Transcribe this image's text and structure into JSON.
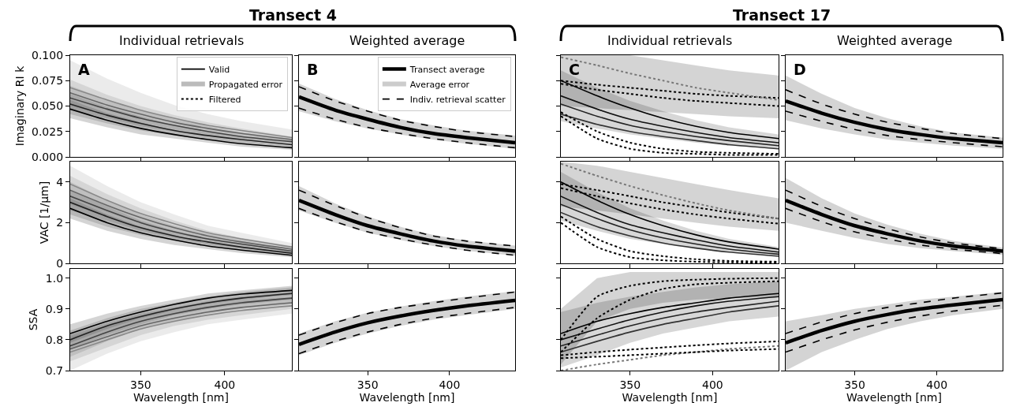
{
  "chart_data": [
    {
      "type": "line",
      "title": "Transect 4",
      "subtitle": "Individual retrievals",
      "annotations": [
        "A"
      ],
      "ylabel": "Imaginary RI k",
      "x": [
        308,
        330,
        350,
        370,
        390,
        410,
        440
      ],
      "xlim": [
        308,
        440
      ],
      "xticks": [
        350,
        400
      ],
      "ylim": [
        0,
        0.1
      ],
      "yticks": [
        {
          "value": 0,
          "label": "0.000"
        },
        {
          "value": 0.025,
          "label": "0.025"
        },
        {
          "value": 0.05,
          "label": "0.050"
        },
        {
          "value": 0.075,
          "label": "0.075"
        },
        {
          "value": 0.1,
          "label": "0.100"
        }
      ],
      "tick_labels": "y",
      "legend": "top right",
      "series": [
        {
          "name": "Valid",
          "color": "#000000",
          "line_style": "solid",
          "values": [
            0.047,
            0.036,
            0.028,
            0.022,
            0.017,
            0.013,
            0.009
          ],
          "lower": [
            0.038,
            0.029,
            0.022,
            0.018,
            0.014,
            0.01,
            0.007
          ],
          "upper": [
            0.056,
            0.043,
            0.034,
            0.026,
            0.02,
            0.016,
            0.011
          ]
        },
        {
          "color": "#222222",
          "line_style": "solid",
          "values": [
            0.052,
            0.041,
            0.033,
            0.026,
            0.021,
            0.017,
            0.012
          ],
          "lower": [
            0.042,
            0.033,
            0.026,
            0.021,
            0.017,
            0.014,
            0.01
          ],
          "upper": [
            0.062,
            0.049,
            0.04,
            0.031,
            0.025,
            0.02,
            0.014
          ]
        },
        {
          "color": "#444444",
          "line_style": "solid",
          "values": [
            0.058,
            0.047,
            0.038,
            0.031,
            0.025,
            0.02,
            0.015
          ],
          "lower": [
            0.046,
            0.038,
            0.03,
            0.025,
            0.02,
            0.016,
            0.012
          ],
          "upper": [
            0.07,
            0.056,
            0.046,
            0.037,
            0.03,
            0.024,
            0.018
          ]
        },
        {
          "color": "#666666",
          "line_style": "solid",
          "values": [
            0.063,
            0.051,
            0.042,
            0.034,
            0.028,
            0.023,
            0.017
          ],
          "lower": [
            0.05,
            0.041,
            0.034,
            0.027,
            0.022,
            0.018,
            0.014
          ],
          "upper": [
            0.076,
            0.061,
            0.05,
            0.041,
            0.034,
            0.028,
            0.02
          ]
        },
        {
          "color": "#888888",
          "line_style": "solid",
          "values": [
            0.068,
            0.056,
            0.046,
            0.038,
            0.031,
            0.026,
            0.019
          ],
          "lower": [
            0.055,
            0.046,
            0.038,
            0.031,
            0.025,
            0.021,
            0.015
          ],
          "upper": [
            0.095,
            0.077,
            0.063,
            0.051,
            0.042,
            0.035,
            0.027
          ]
        },
        {
          "name": "Propagated error",
          "type": "area",
          "color": "#bbbbbb",
          "values": [
            null,
            null,
            null,
            null,
            null,
            null,
            null
          ]
        },
        {
          "name": "Filtered",
          "color": "#000000",
          "line_style": "dotted",
          "values": [
            null,
            null,
            null,
            null,
            null,
            null,
            null
          ]
        }
      ]
    },
    {
      "type": "line",
      "subtitle": "Weighted average",
      "annotations": [
        "B"
      ],
      "x": [
        308,
        330,
        350,
        370,
        390,
        410,
        440
      ],
      "xlim": [
        308,
        440
      ],
      "xticks": [
        350,
        400
      ],
      "ylim": [
        0,
        0.1
      ],
      "yticks": [
        0,
        0.025,
        0.05,
        0.075,
        0.1
      ],
      "tick_labels": false,
      "legend": "top right",
      "series": [
        {
          "name": "Transect average",
          "color": "#000000",
          "line_style": "solid",
          "values": [
            0.059,
            0.046,
            0.037,
            0.029,
            0.023,
            0.019,
            0.014
          ],
          "lower": [
            0.045,
            0.035,
            0.028,
            0.022,
            0.017,
            0.013,
            0.008
          ],
          "upper": [
            0.072,
            0.057,
            0.046,
            0.037,
            0.031,
            0.026,
            0.021
          ]
        },
        {
          "name": "Average error",
          "type": "area",
          "color": "#cccccc",
          "values": [
            null,
            null,
            null,
            null,
            null,
            null,
            null
          ]
        },
        {
          "name": "Indiv. retrieval scatter",
          "color": "#000000",
          "line_style": "dashed",
          "values": [
            0.069,
            0.055,
            0.045,
            0.036,
            0.03,
            0.025,
            0.02
          ]
        },
        {
          "color": "#000000",
          "line_style": "dashed",
          "values": [
            0.048,
            0.037,
            0.029,
            0.023,
            0.018,
            0.014,
            0.009
          ]
        }
      ]
    },
    {
      "type": "line",
      "title": "Transect 17",
      "subtitle": "Individual retrievals",
      "annotations": [
        "C"
      ],
      "x": [
        308,
        330,
        350,
        370,
        390,
        410,
        440
      ],
      "xlim": [
        308,
        440
      ],
      "xticks": [
        350,
        400
      ],
      "ylim": [
        0,
        0.1
      ],
      "yticks": [
        0,
        0.025,
        0.05,
        0.075,
        0.1
      ],
      "tick_labels": false,
      "series": [
        {
          "color": "#000000",
          "line_style": "solid",
          "values": [
            0.075,
            0.06,
            0.048,
            0.038,
            0.03,
            0.024,
            0.018
          ]
        },
        {
          "color": "#111111",
          "line_style": "solid",
          "values": [
            0.06,
            0.047,
            0.037,
            0.03,
            0.024,
            0.019,
            0.014
          ],
          "lower": [
            0.035,
            0.028,
            0.022,
            0.018,
            0.014,
            0.011,
            0.008
          ],
          "upper": [
            0.085,
            0.068,
            0.055,
            0.045,
            0.036,
            0.029,
            0.022
          ]
        },
        {
          "color": "#222222",
          "line_style": "solid",
          "values": [
            0.052,
            0.04,
            0.031,
            0.025,
            0.02,
            0.016,
            0.011
          ]
        },
        {
          "color": "#333333",
          "line_style": "solid",
          "values": [
            0.042,
            0.032,
            0.025,
            0.02,
            0.016,
            0.012,
            0.008
          ]
        },
        {
          "color": "#000000",
          "line_style": "dotted",
          "values": [
            0.075,
            0.071,
            0.068,
            0.065,
            0.062,
            0.06,
            0.058
          ],
          "lower": [
            0.05,
            0.048,
            0.046,
            0.044,
            0.042,
            0.04,
            0.038
          ],
          "upper": [
            0.1,
            0.1,
            0.1,
            0.095,
            0.09,
            0.085,
            0.08
          ]
        },
        {
          "color": "#000000",
          "line_style": "dotted",
          "values": [
            0.072,
            0.066,
            0.062,
            0.058,
            0.055,
            0.053,
            0.05
          ]
        },
        {
          "color": "#777777",
          "line_style": "dotted",
          "values": [
            0.098,
            0.09,
            0.082,
            0.075,
            0.068,
            0.063,
            0.056
          ]
        },
        {
          "color": "#000000",
          "line_style": "dotted",
          "values": [
            0.044,
            0.025,
            0.014,
            0.008,
            0.005,
            0.004,
            0.003
          ]
        },
        {
          "color": "#000000",
          "line_style": "dotted",
          "values": [
            0.04,
            0.018,
            0.008,
            0.004,
            0.003,
            0.002,
            0.002
          ]
        }
      ]
    },
    {
      "type": "line",
      "subtitle": "Weighted average",
      "annotations": [
        "D"
      ],
      "x": [
        308,
        330,
        350,
        370,
        390,
        410,
        440
      ],
      "xlim": [
        308,
        440
      ],
      "xticks": [
        350,
        400
      ],
      "ylim": [
        0,
        0.1
      ],
      "yticks": [
        0,
        0.025,
        0.05,
        0.075,
        0.1
      ],
      "tick_labels": false,
      "series": [
        {
          "color": "#000000",
          "line_style": "solid",
          "values": [
            0.055,
            0.043,
            0.034,
            0.027,
            0.022,
            0.018,
            0.014
          ],
          "lower": [
            0.036,
            0.028,
            0.022,
            0.017,
            0.014,
            0.011,
            0.008
          ],
          "upper": [
            0.08,
            0.062,
            0.048,
            0.038,
            0.03,
            0.024,
            0.019
          ]
        },
        {
          "color": "#000000",
          "line_style": "dashed",
          "values": [
            0.066,
            0.052,
            0.042,
            0.034,
            0.028,
            0.023,
            0.018
          ]
        },
        {
          "color": "#000000",
          "line_style": "dashed",
          "values": [
            0.045,
            0.035,
            0.027,
            0.021,
            0.017,
            0.014,
            0.01
          ]
        }
      ]
    },
    {
      "type": "line",
      "ylabel": "VAC [1/μm]",
      "x": [
        308,
        330,
        350,
        370,
        390,
        410,
        440
      ],
      "xlim": [
        308,
        440
      ],
      "xticks": [
        350,
        400
      ],
      "ylim": [
        0,
        5
      ],
      "yticks": [
        0,
        2,
        4
      ],
      "tick_labels": "y",
      "series": [
        {
          "color": "#000000",
          "line_style": "solid",
          "values": [
            2.7,
            2.0,
            1.5,
            1.15,
            0.85,
            0.65,
            0.4
          ],
          "lower": [
            2.2,
            1.6,
            1.2,
            0.9,
            0.7,
            0.5,
            0.3
          ],
          "upper": [
            3.2,
            2.4,
            1.8,
            1.4,
            1.0,
            0.8,
            0.5
          ]
        },
        {
          "color": "#222222",
          "line_style": "solid",
          "values": [
            3.0,
            2.3,
            1.75,
            1.35,
            1.05,
            0.8,
            0.5
          ],
          "lower": [
            2.4,
            1.8,
            1.4,
            1.1,
            0.85,
            0.65,
            0.4
          ],
          "upper": [
            3.6,
            2.8,
            2.1,
            1.6,
            1.25,
            0.95,
            0.6
          ]
        },
        {
          "color": "#444444",
          "line_style": "solid",
          "values": [
            3.3,
            2.6,
            2.0,
            1.55,
            1.2,
            0.95,
            0.6
          ],
          "lower": [
            2.6,
            2.1,
            1.6,
            1.25,
            0.95,
            0.75,
            0.5
          ],
          "upper": [
            4.0,
            3.1,
            2.4,
            1.85,
            1.45,
            1.15,
            0.7
          ]
        },
        {
          "color": "#666666",
          "line_style": "solid",
          "values": [
            3.6,
            2.85,
            2.25,
            1.75,
            1.35,
            1.05,
            0.7
          ],
          "lower": [
            2.9,
            2.3,
            1.8,
            1.4,
            1.1,
            0.85,
            0.55
          ],
          "upper": [
            4.3,
            3.4,
            2.7,
            2.1,
            1.6,
            1.25,
            0.85
          ]
        },
        {
          "color": "#888888",
          "line_style": "solid",
          "values": [
            3.9,
            3.1,
            2.45,
            1.95,
            1.5,
            1.2,
            0.8
          ],
          "lower": [
            3.1,
            2.5,
            2.0,
            1.55,
            1.2,
            0.95,
            0.6
          ],
          "upper": [
            4.8,
            3.8,
            3.0,
            2.4,
            1.85,
            1.5,
            1.0
          ]
        }
      ]
    },
    {
      "type": "line",
      "x": [
        308,
        330,
        350,
        370,
        390,
        410,
        440
      ],
      "xlim": [
        308,
        440
      ],
      "xticks": [
        350,
        400
      ],
      "ylim": [
        0,
        5
      ],
      "yticks": [
        0,
        2,
        4
      ],
      "tick_labels": false,
      "series": [
        {
          "color": "#000000",
          "line_style": "solid",
          "values": [
            3.1,
            2.4,
            1.85,
            1.45,
            1.1,
            0.85,
            0.6
          ],
          "lower": [
            2.6,
            2.0,
            1.5,
            1.15,
            0.85,
            0.62,
            0.38
          ],
          "upper": [
            3.8,
            2.95,
            2.3,
            1.8,
            1.4,
            1.12,
            0.87
          ]
        },
        {
          "color": "#000000",
          "line_style": "dashed",
          "values": [
            3.6,
            2.85,
            2.25,
            1.75,
            1.35,
            1.1,
            0.85
          ]
        },
        {
          "color": "#000000",
          "line_style": "dashed",
          "values": [
            2.7,
            2.05,
            1.55,
            1.2,
            0.9,
            0.65,
            0.4
          ]
        }
      ]
    },
    {
      "type": "line",
      "x": [
        308,
        330,
        350,
        370,
        390,
        410,
        440
      ],
      "xlim": [
        308,
        440
      ],
      "xticks": [
        350,
        400
      ],
      "ylim": [
        0,
        5
      ],
      "yticks": [
        0,
        2,
        4
      ],
      "tick_labels": false,
      "series": [
        {
          "color": "#000000",
          "line_style": "solid",
          "values": [
            4.0,
            3.1,
            2.4,
            1.85,
            1.4,
            1.05,
            0.7
          ]
        },
        {
          "color": "#111111",
          "line_style": "solid",
          "values": [
            3.3,
            2.5,
            1.9,
            1.5,
            1.15,
            0.85,
            0.55
          ],
          "lower": [
            2.1,
            1.6,
            1.2,
            0.95,
            0.7,
            0.55,
            0.35
          ],
          "upper": [
            4.5,
            3.5,
            2.7,
            2.1,
            1.6,
            1.2,
            0.8
          ]
        },
        {
          "color": "#222222",
          "line_style": "solid",
          "values": [
            2.9,
            2.2,
            1.65,
            1.25,
            0.95,
            0.7,
            0.45
          ]
        },
        {
          "color": "#333333",
          "line_style": "solid",
          "values": [
            2.5,
            1.8,
            1.35,
            1.0,
            0.75,
            0.55,
            0.35
          ]
        },
        {
          "color": "#000000",
          "line_style": "dotted",
          "values": [
            3.9,
            3.6,
            3.3,
            3.0,
            2.75,
            2.5,
            2.2
          ],
          "lower": [
            2.8,
            2.6,
            2.4,
            2.2,
            2.0,
            1.8,
            1.6
          ],
          "upper": [
            5.0,
            4.8,
            4.5,
            4.2,
            3.9,
            3.6,
            3.2
          ]
        },
        {
          "color": "#000000",
          "line_style": "dotted",
          "values": [
            3.7,
            3.3,
            2.95,
            2.65,
            2.4,
            2.2,
            1.95
          ]
        },
        {
          "color": "#777777",
          "line_style": "dotted",
          "values": [
            4.9,
            4.3,
            3.8,
            3.35,
            2.95,
            2.6,
            2.2
          ]
        },
        {
          "color": "#000000",
          "line_style": "dotted",
          "values": [
            2.3,
            1.2,
            0.6,
            0.35,
            0.2,
            0.12,
            0.08
          ]
        },
        {
          "color": "#000000",
          "line_style": "dotted",
          "values": [
            2.0,
            0.8,
            0.3,
            0.15,
            0.08,
            0.05,
            0.03
          ]
        }
      ]
    },
    {
      "type": "line",
      "x": [
        308,
        330,
        350,
        370,
        390,
        410,
        440
      ],
      "xlim": [
        308,
        440
      ],
      "xticks": [
        350,
        400
      ],
      "ylim": [
        0,
        5
      ],
      "yticks": [
        0,
        2,
        4
      ],
      "tick_labels": false,
      "series": [
        {
          "color": "#000000",
          "line_style": "solid",
          "values": [
            3.1,
            2.4,
            1.85,
            1.45,
            1.1,
            0.85,
            0.6
          ],
          "lower": [
            2.0,
            1.6,
            1.25,
            0.95,
            0.75,
            0.6,
            0.42
          ],
          "upper": [
            4.2,
            3.2,
            2.45,
            1.9,
            1.45,
            1.1,
            0.78
          ]
        },
        {
          "color": "#000000",
          "line_style": "dashed",
          "values": [
            3.6,
            2.8,
            2.2,
            1.7,
            1.3,
            1.0,
            0.72
          ]
        },
        {
          "color": "#000000",
          "line_style": "dashed",
          "values": [
            2.7,
            2.05,
            1.55,
            1.2,
            0.9,
            0.7,
            0.48
          ]
        }
      ]
    },
    {
      "type": "line",
      "ylabel": "SSA",
      "xlabel": "Wavelength [nm]",
      "x": [
        308,
        330,
        350,
        370,
        390,
        410,
        440
      ],
      "xlim": [
        308,
        440
      ],
      "xticks": [
        350,
        400
      ],
      "ylim": [
        0.7,
        1.03
      ],
      "yticks": [
        0.7,
        0.8,
        0.9,
        {
          "value": 1.0,
          "label": "1.0"
        }
      ],
      "series": [
        {
          "color": "#000000",
          "line_style": "solid",
          "values": [
            0.82,
            0.86,
            0.89,
            0.915,
            0.935,
            0.948,
            0.96
          ],
          "lower": [
            0.79,
            0.835,
            0.87,
            0.895,
            0.915,
            0.93,
            0.945
          ],
          "upper": [
            0.85,
            0.885,
            0.91,
            0.93,
            0.95,
            0.96,
            0.975
          ]
        },
        {
          "color": "#222222",
          "line_style": "solid",
          "values": [
            0.8,
            0.845,
            0.875,
            0.9,
            0.92,
            0.935,
            0.95
          ],
          "lower": [
            0.77,
            0.815,
            0.85,
            0.88,
            0.9,
            0.915,
            0.93
          ],
          "upper": [
            0.83,
            0.87,
            0.9,
            0.92,
            0.94,
            0.955,
            0.97
          ]
        },
        {
          "color": "#444444",
          "line_style": "solid",
          "values": [
            0.78,
            0.825,
            0.86,
            0.885,
            0.905,
            0.92,
            0.935
          ],
          "lower": [
            0.745,
            0.795,
            0.835,
            0.86,
            0.885,
            0.9,
            0.915
          ],
          "upper": [
            0.815,
            0.855,
            0.885,
            0.905,
            0.925,
            0.94,
            0.955
          ]
        },
        {
          "color": "#666666",
          "line_style": "solid",
          "values": [
            0.77,
            0.81,
            0.845,
            0.87,
            0.89,
            0.905,
            0.92
          ],
          "lower": [
            0.73,
            0.775,
            0.815,
            0.845,
            0.865,
            0.88,
            0.9
          ],
          "upper": [
            0.81,
            0.845,
            0.875,
            0.895,
            0.915,
            0.93,
            0.94
          ]
        },
        {
          "color": "#888888",
          "line_style": "solid",
          "values": [
            0.76,
            0.8,
            0.835,
            0.86,
            0.88,
            0.895,
            0.91
          ],
          "lower": [
            0.7,
            0.755,
            0.795,
            0.825,
            0.85,
            0.865,
            0.885
          ],
          "upper": [
            0.82,
            0.845,
            0.875,
            0.895,
            0.91,
            0.925,
            0.935
          ]
        }
      ]
    },
    {
      "type": "line",
      "xlabel": "Wavelength [nm]",
      "x": [
        308,
        330,
        350,
        370,
        390,
        410,
        440
      ],
      "xlim": [
        308,
        440
      ],
      "xticks": [
        350,
        400
      ],
      "ylim": [
        0.7,
        1.03
      ],
      "yticks": [
        0.7,
        0.8,
        0.9,
        1.0
      ],
      "tick_labels": "x",
      "series": [
        {
          "color": "#000000",
          "line_style": "solid",
          "values": [
            0.785,
            0.825,
            0.855,
            0.877,
            0.895,
            0.91,
            0.928
          ],
          "lower": [
            0.75,
            0.79,
            0.82,
            0.845,
            0.865,
            0.88,
            0.9
          ],
          "upper": [
            0.82,
            0.86,
            0.888,
            0.908,
            0.925,
            0.94,
            0.958
          ]
        },
        {
          "color": "#000000",
          "line_style": "dashed",
          "values": [
            0.815,
            0.855,
            0.885,
            0.905,
            0.92,
            0.935,
            0.955
          ]
        },
        {
          "color": "#000000",
          "line_style": "dashed",
          "values": [
            0.755,
            0.795,
            0.825,
            0.85,
            0.87,
            0.885,
            0.905
          ]
        }
      ]
    },
    {
      "type": "line",
      "xlabel": "Wavelength [nm]",
      "x": [
        308,
        330,
        350,
        370,
        390,
        410,
        440
      ],
      "xlim": [
        308,
        440
      ],
      "xticks": [
        350,
        400
      ],
      "ylim": [
        0.7,
        1.03
      ],
      "yticks": [
        0.7,
        0.8,
        0.9,
        1.0
      ],
      "tick_labels": "x",
      "series": [
        {
          "color": "#000000",
          "line_style": "solid",
          "values": [
            0.82,
            0.86,
            0.885,
            0.905,
            0.92,
            0.935,
            0.95
          ]
        },
        {
          "color": "#111111",
          "line_style": "solid",
          "values": [
            0.8,
            0.835,
            0.865,
            0.89,
            0.91,
            0.925,
            0.94
          ],
          "lower": [
            0.71,
            0.75,
            0.79,
            0.82,
            0.84,
            0.86,
            0.875
          ],
          "upper": [
            0.89,
            0.92,
            0.94,
            0.955,
            0.97,
            0.98,
            0.99
          ]
        },
        {
          "color": "#222222",
          "line_style": "solid",
          "values": [
            0.78,
            0.815,
            0.845,
            0.87,
            0.89,
            0.905,
            0.925
          ]
        },
        {
          "color": "#333333",
          "line_style": "solid",
          "values": [
            0.76,
            0.795,
            0.825,
            0.85,
            0.87,
            0.89,
            0.91
          ]
        },
        {
          "color": "#000000",
          "line_style": "dotted",
          "values": [
            0.8,
            0.94,
            0.975,
            0.99,
            0.995,
            0.998,
            1.0
          ],
          "lower": [
            0.72,
            0.86,
            0.9,
            0.92,
            0.93,
            0.935,
            0.94
          ],
          "upper": [
            0.9,
            1.0,
            1.02,
            1.02,
            1.02,
            1.02,
            1.02
          ]
        },
        {
          "color": "#000000",
          "line_style": "dotted",
          "values": [
            0.76,
            0.87,
            0.93,
            0.965,
            0.98,
            0.985,
            0.99
          ]
        },
        {
          "color": "#777777",
          "line_style": "dotted",
          "values": [
            0.7,
            0.72,
            0.735,
            0.75,
            0.76,
            0.77,
            0.78
          ]
        },
        {
          "color": "#000000",
          "line_style": "dotted",
          "values": [
            0.75,
            0.76,
            0.768,
            0.775,
            0.782,
            0.788,
            0.795
          ]
        },
        {
          "color": "#000000",
          "line_style": "dotted",
          "values": [
            0.74,
            0.745,
            0.75,
            0.755,
            0.76,
            0.765,
            0.77
          ]
        }
      ]
    },
    {
      "type": "line",
      "xlabel": "Wavelength [nm]",
      "x": [
        308,
        330,
        350,
        370,
        390,
        410,
        440
      ],
      "xlim": [
        308,
        440
      ],
      "xticks": [
        350,
        400
      ],
      "ylim": [
        0.7,
        1.03
      ],
      "yticks": [
        0.7,
        0.8,
        0.9,
        1.0
      ],
      "tick_labels": "x",
      "series": [
        {
          "color": "#000000",
          "line_style": "solid",
          "values": [
            0.79,
            0.83,
            0.86,
            0.882,
            0.9,
            0.913,
            0.93
          ],
          "lower": [
            0.7,
            0.76,
            0.8,
            0.835,
            0.86,
            0.88,
            0.9
          ],
          "upper": [
            0.86,
            0.88,
            0.9,
            0.915,
            0.93,
            0.94,
            0.955
          ]
        },
        {
          "color": "#000000",
          "line_style": "dashed",
          "values": [
            0.82,
            0.858,
            0.885,
            0.905,
            0.92,
            0.935,
            0.952
          ]
        },
        {
          "color": "#000000",
          "line_style": "dashed",
          "values": [
            0.76,
            0.8,
            0.832,
            0.857,
            0.877,
            0.893,
            0.912
          ]
        }
      ]
    }
  ]
}
